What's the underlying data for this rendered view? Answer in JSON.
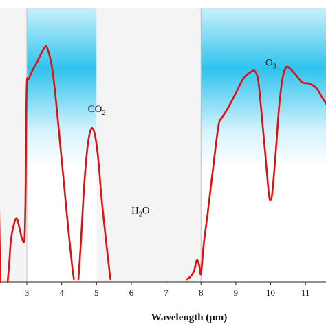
{
  "chart_data": {
    "type": "line",
    "title": "",
    "xlabel": "Wavelength (μm)",
    "ylabel": "",
    "xlim": [
      2.0,
      11.6
    ],
    "ylim": [
      0,
      100
    ],
    "xticks": [
      {
        "value": 3,
        "label": "3"
      },
      {
        "value": 4,
        "label": "4"
      },
      {
        "value": 5,
        "label": "5"
      },
      {
        "value": 6,
        "label": "6"
      },
      {
        "value": 7,
        "label": "7"
      },
      {
        "value": 8,
        "label": "8"
      },
      {
        "value": 9,
        "label": "9"
      },
      {
        "value": 10,
        "label": "10"
      },
      {
        "value": 11,
        "label": "11"
      }
    ],
    "grid": false,
    "legend": "none",
    "shaded_windows": [
      {
        "x_start": 3.0,
        "x_end": 5.0,
        "style": "sky-gradient"
      },
      {
        "x_start": 8.0,
        "x_end": 11.6,
        "style": "sky-gradient"
      }
    ],
    "absorption_bands": [
      {
        "x_start": 2.0,
        "x_end": 3.0
      },
      {
        "x_start": 5.0,
        "x_end": 8.0
      }
    ],
    "annotations": [
      {
        "main": "CO",
        "sub": "2",
        "x": 4.75,
        "y": 62
      },
      {
        "main": "H",
        "sub": "2",
        "tail": "O",
        "x": 6.0,
        "y": 25
      },
      {
        "main": "O",
        "sub": "3",
        "x": 9.85,
        "y": 79
      }
    ],
    "series": [
      {
        "color": "#dd1111",
        "segments": [
          [
            [
              2.0,
              88
            ],
            [
              2.07,
              90.5
            ],
            [
              2.12,
              89
            ],
            [
              2.16,
              70
            ],
            [
              2.2,
              30
            ],
            [
              2.24,
              0
            ]
          ],
          [
            [
              2.45,
              0
            ],
            [
              2.5,
              8
            ],
            [
              2.55,
              16
            ],
            [
              2.65,
              22
            ],
            [
              2.72,
              23
            ],
            [
              2.8,
              19
            ],
            [
              2.86,
              16
            ],
            [
              2.93,
              15.5
            ],
            [
              2.96,
              30
            ],
            [
              2.98,
              55
            ],
            [
              3.0,
              73
            ],
            [
              3.05,
              74
            ],
            [
              3.15,
              77
            ],
            [
              3.3,
              80.5
            ],
            [
              3.5,
              85.5
            ],
            [
              3.6,
              85
            ],
            [
              3.75,
              76
            ],
            [
              3.9,
              58
            ],
            [
              4.05,
              38
            ],
            [
              4.2,
              18
            ],
            [
              4.3,
              6
            ],
            [
              4.35,
              1
            ]
          ],
          [
            [
              4.48,
              1
            ],
            [
              4.55,
              14
            ],
            [
              4.65,
              36
            ],
            [
              4.75,
              50
            ],
            [
              4.85,
              56
            ],
            [
              4.95,
              54
            ],
            [
              5.05,
              45
            ],
            [
              5.15,
              30
            ],
            [
              5.3,
              12
            ],
            [
              5.4,
              1
            ]
          ],
          [
            [
              7.6,
              1
            ],
            [
              7.7,
              2
            ],
            [
              7.8,
              4
            ],
            [
              7.88,
              8
            ],
            [
              7.95,
              6
            ],
            [
              8.0,
              3
            ],
            [
              8.08,
              14
            ],
            [
              8.2,
              26
            ],
            [
              8.35,
              42
            ],
            [
              8.5,
              57
            ],
            [
              8.6,
              60
            ],
            [
              8.75,
              63
            ],
            [
              9.0,
              69
            ],
            [
              9.2,
              74
            ],
            [
              9.4,
              76.5
            ],
            [
              9.55,
              77
            ],
            [
              9.65,
              73
            ],
            [
              9.75,
              60
            ],
            [
              9.85,
              46
            ],
            [
              9.95,
              32
            ],
            [
              10.0,
              30
            ],
            [
              10.05,
              33
            ],
            [
              10.15,
              48
            ],
            [
              10.25,
              65
            ],
            [
              10.35,
              75
            ],
            [
              10.45,
              78.5
            ],
            [
              10.55,
              78
            ],
            [
              10.7,
              76
            ],
            [
              10.9,
              73
            ],
            [
              11.1,
              72.5
            ],
            [
              11.3,
              71
            ],
            [
              11.5,
              67
            ],
            [
              11.6,
              65
            ]
          ]
        ]
      }
    ]
  }
}
